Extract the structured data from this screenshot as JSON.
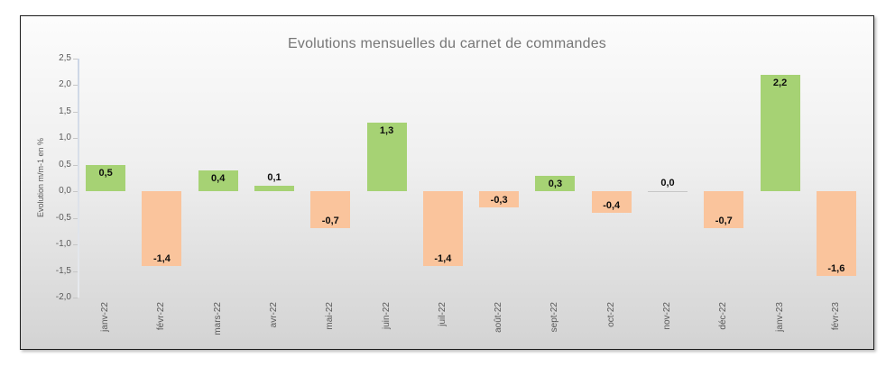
{
  "chart_data": {
    "type": "bar",
    "title": "Evolutions mensuelles du carnet de commandes",
    "xlabel": "",
    "ylabel": "Evolution m/m-1 en %",
    "categories": [
      "janv-22",
      "févr-22",
      "mars-22",
      "avr-22",
      "mai-22",
      "juin-22",
      "juil-22",
      "août-22",
      "sept-22",
      "oct-22",
      "nov-22",
      "déc-22",
      "janv-23",
      "févr-23"
    ],
    "values": [
      0.5,
      -1.4,
      0.4,
      0.1,
      -0.7,
      1.3,
      -1.4,
      -0.3,
      0.3,
      -0.4,
      0.0,
      -0.7,
      2.2,
      -1.6
    ],
    "value_labels": [
      "0,5",
      "-1,4",
      "0,4",
      "0,1",
      "-0,7",
      "1,3",
      "-1,4",
      "-0,3",
      "0,3",
      "-0,4",
      "0,0",
      "-0,7",
      "2,2",
      "-1,6"
    ],
    "ylim": [
      -2.0,
      2.5
    ],
    "ytick_step": 0.5,
    "ytick_labels": [
      "2,5",
      "2,0",
      "1,5",
      "1,0",
      "0,5",
      "0,0",
      "-0,5",
      "-1,0",
      "-1,5",
      "-2,0"
    ],
    "grid": false,
    "legend": null,
    "colors": {
      "positive_bar": "#a6d274",
      "negative_bar": "#fac49c",
      "title_text": "#767676",
      "axis_text": "#595959"
    }
  }
}
